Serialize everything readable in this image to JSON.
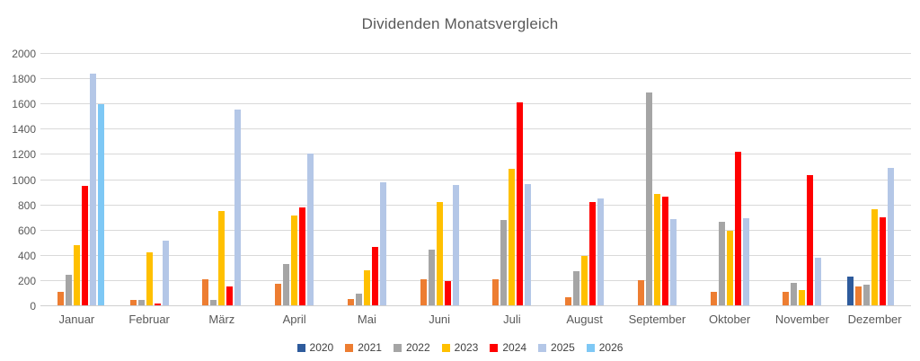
{
  "title": "Dividenden Monatsvergleich",
  "chart_data": {
    "type": "bar",
    "title": "Dividenden Monatsvergleich",
    "categories": [
      "Januar",
      "Februar",
      "März",
      "April",
      "Mai",
      "Juni",
      "Juli",
      "August",
      "September",
      "Oktober",
      "November",
      "Dezember"
    ],
    "series": [
      {
        "name": "2020",
        "color": "#2E5B9C",
        "values": [
          0,
          0,
          0,
          0,
          0,
          0,
          0,
          0,
          0,
          0,
          0,
          230
        ]
      },
      {
        "name": "2021",
        "color": "#ED7D31",
        "values": [
          110,
          45,
          210,
          170,
          50,
          205,
          205,
          65,
          200,
          105,
          105,
          150
        ]
      },
      {
        "name": "2022",
        "color": "#A5A5A5",
        "values": [
          245,
          40,
          45,
          330,
          95,
          440,
          680,
          270,
          1690,
          660,
          180,
          165
        ]
      },
      {
        "name": "2023",
        "color": "#FFC000",
        "values": [
          475,
          420,
          745,
          710,
          280,
          820,
          1080,
          390,
          885,
          590,
          120,
          760
        ]
      },
      {
        "name": "2024",
        "color": "#FF0000",
        "values": [
          945,
          15,
          150,
          775,
          465,
          195,
          1610,
          820,
          865,
          1215,
          1030,
          695
        ]
      },
      {
        "name": "2025",
        "color": "#B4C7E7",
        "values": [
          1840,
          510,
          1550,
          1200,
          975,
          955,
          960,
          845,
          685,
          690,
          375,
          1090
        ]
      },
      {
        "name": "2026",
        "color": "#7EC8F5",
        "values": [
          1595,
          0,
          0,
          0,
          0,
          0,
          0,
          0,
          0,
          0,
          0,
          0
        ]
      }
    ],
    "xlabel": "",
    "ylabel": "",
    "ylim": [
      0,
      2000
    ],
    "ytick_step": 200,
    "grid": true,
    "legend_position": "bottom",
    "colors": {
      "grid": "#d9d9d9",
      "axis_text": "#595959",
      "title_text": "#595959",
      "legend_text": "#404040",
      "background": "#ffffff"
    }
  }
}
